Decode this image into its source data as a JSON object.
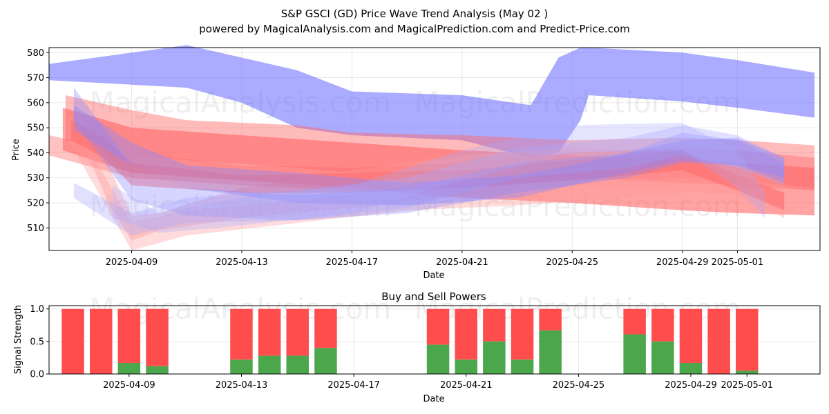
{
  "chart_data": [
    {
      "type": "area",
      "title": "S&P GSCI (GD) Price Wave Trend Analysis (May 02 )",
      "subtitle": "powered by MagicalAnalysis.com and MagicalPrediction.com and Predict-Price.com",
      "xlabel": "Date",
      "ylabel": "Price",
      "x_start": "2025-04-06",
      "x_end": "2025-05-04",
      "ylim": [
        501,
        582
      ],
      "yticks": [
        510,
        520,
        530,
        540,
        550,
        560,
        570,
        580
      ],
      "xticks": [
        "2025-04-09",
        "2025-04-13",
        "2025-04-17",
        "2025-04-21",
        "2025-04-25",
        "2025-04-29",
        "2025-05-01"
      ],
      "grid": true,
      "watermarks": [
        "MagicalAnalysis.com",
        "MagicalPrediction.com"
      ],
      "bands": [
        {
          "color": "#6666ff",
          "opacity": 0.55,
          "points": [
            [
              "2025-04-06",
              575.5,
              569
            ],
            [
              "2025-04-11",
              583,
              566
            ],
            [
              "2025-04-13",
              578,
              560
            ],
            [
              "2025-04-15",
              573,
              550
            ],
            [
              "2025-04-17",
              564.5,
              547
            ],
            [
              "2025-04-21",
              563,
              545
            ],
            [
              "2025-04-23.5",
              559,
              538
            ],
            [
              "2025-04-24.5",
              578,
              540
            ],
            [
              "2025-04-25.3",
              582,
              553
            ],
            [
              "2025-04-25.6",
              582,
              563
            ],
            [
              "2025-04-29",
              580,
              560.5
            ],
            [
              "2025-05-01",
              577,
              558
            ],
            [
              "2025-05-03.8",
              572,
              554
            ]
          ]
        },
        {
          "color": "#ff6666",
          "opacity": 0.6,
          "points": [
            [
              "2025-04-06.5",
              558,
              541
            ],
            [
              "2025-04-09",
              550,
              532
            ],
            [
              "2025-04-13",
              547,
              529
            ],
            [
              "2025-04-17",
              544,
              526
            ],
            [
              "2025-04-21",
              541,
              522
            ],
            [
              "2025-04-25",
              539,
              520
            ],
            [
              "2025-04-29",
              537,
              517
            ],
            [
              "2025-05-01",
              536,
              516
            ],
            [
              "2025-05-03.8",
              534,
              515
            ]
          ]
        },
        {
          "color": "#ff6666",
          "opacity": 0.45,
          "points": [
            [
              "2025-04-06.6",
              563,
              545
            ],
            [
              "2025-04-09",
              557,
              540
            ],
            [
              "2025-04-11",
              553,
              537
            ],
            [
              "2025-04-15",
              551,
              534
            ],
            [
              "2025-04-17",
              548,
              532
            ],
            [
              "2025-04-21",
              547,
              531
            ],
            [
              "2025-04-25",
              545,
              530
            ],
            [
              "2025-04-29",
              546,
              528
            ],
            [
              "2025-05-01",
              545,
              527
            ],
            [
              "2025-05-03.8",
              543,
              525
            ]
          ]
        },
        {
          "color": "#ff6666",
          "opacity": 0.4,
          "points": [
            [
              "2025-04-06",
              547,
              539
            ],
            [
              "2025-04-09",
              540,
              530
            ],
            [
              "2025-04-13",
              535,
              527
            ],
            [
              "2025-04-17",
              534,
              525
            ],
            [
              "2025-04-21",
              536,
              526
            ],
            [
              "2025-04-25",
              540,
              529
            ],
            [
              "2025-04-29",
              542,
              530
            ],
            [
              "2025-05-01",
              541,
              529
            ],
            [
              "2025-05-03.8",
              538,
              526
            ]
          ]
        },
        {
          "color": "#ff9999",
          "opacity": 0.4,
          "points": [
            [
              "2025-04-07",
              557,
              549
            ],
            [
              "2025-04-08.2",
              534,
              519
            ],
            [
              "2025-04-09",
              515,
              505
            ],
            [
              "2025-04-10",
              516,
              509
            ],
            [
              "2025-04-13",
              526,
              514
            ],
            [
              "2025-04-17",
              533,
              518
            ],
            [
              "2025-04-21",
              539,
              523
            ],
            [
              "2025-04-25",
              542,
              527
            ],
            [
              "2025-04-29",
              540,
              525
            ],
            [
              "2025-05-01",
              531,
              523
            ],
            [
              "2025-05-02.7",
              524,
              514
            ]
          ]
        },
        {
          "color": "#ff9999",
          "opacity": 0.35,
          "points": [
            [
              "2025-04-06.7",
              556,
              545
            ],
            [
              "2025-04-09",
              512,
              501
            ],
            [
              "2025-04-11",
              517,
              507
            ],
            [
              "2025-04-15",
              521,
              512
            ],
            [
              "2025-04-19",
              526,
              517
            ],
            [
              "2025-04-23",
              531,
              519
            ],
            [
              "2025-04-27",
              536,
              522
            ],
            [
              "2025-04-29",
              539,
              524
            ],
            [
              "2025-05-01",
              536,
              524
            ],
            [
              "2025-05-02.7",
              528,
              518
            ]
          ]
        },
        {
          "color": "#ff6666",
          "opacity": 0.5,
          "points": [
            [
              "2025-04-06.8",
              553,
              545
            ],
            [
              "2025-04-08",
              546,
              538
            ],
            [
              "2025-04-09",
              536,
              527
            ],
            [
              "2025-04-13",
              531,
              524
            ],
            [
              "2025-04-17",
              532,
              524
            ],
            [
              "2025-04-21",
              533,
              526
            ],
            [
              "2025-04-25",
              537,
              529
            ],
            [
              "2025-04-29",
              541,
              533
            ],
            [
              "2025-05-01",
              531,
              525
            ],
            [
              "2025-05-02.7",
              524,
              517
            ]
          ]
        },
        {
          "color": "#8888ff",
          "opacity": 0.35,
          "points": [
            [
              "2025-04-06.9",
              566,
              553
            ],
            [
              "2025-04-09",
              535,
              521
            ],
            [
              "2025-04-11",
              526,
              515
            ],
            [
              "2025-04-15",
              523,
              513
            ],
            [
              "2025-04-19",
              526,
              516
            ],
            [
              "2025-04-23",
              536,
              524
            ],
            [
              "2025-04-27",
              540,
              530
            ],
            [
              "2025-04-29",
              548,
              536
            ],
            [
              "2025-05-01",
              545,
              535
            ],
            [
              "2025-05-02.7",
              536,
              528
            ]
          ]
        },
        {
          "color": "#aaaaff",
          "opacity": 0.35,
          "points": [
            [
              "2025-04-06.9",
              528,
              522
            ],
            [
              "2025-04-09",
              516,
              507
            ],
            [
              "2025-04-11",
              522,
              512
            ],
            [
              "2025-04-15",
              525,
              513
            ],
            [
              "2025-04-19",
              530,
              518
            ],
            [
              "2025-04-23",
              542,
              530
            ],
            [
              "2025-04-27",
              546,
              534
            ],
            [
              "2025-04-29",
              551,
              539
            ],
            [
              "2025-05-01",
              547,
              534
            ],
            [
              "2025-05-02.7",
              538,
              527
            ]
          ]
        },
        {
          "color": "#8888ff",
          "opacity": 0.4,
          "points": [
            [
              "2025-04-06.9",
              559,
              549
            ],
            [
              "2025-04-09",
              544,
              535
            ],
            [
              "2025-04-11",
              535,
              526
            ],
            [
              "2025-04-15",
              532,
              520
            ],
            [
              "2025-04-19",
              528,
              519
            ],
            [
              "2025-04-23",
              531,
              522
            ],
            [
              "2025-04-25",
              535,
              527
            ],
            [
              "2025-04-29",
              545,
              537
            ],
            [
              "2025-05-01",
              546,
              535
            ],
            [
              "2025-05-02.7",
              538,
              530
            ]
          ]
        },
        {
          "color": "#aaaaff",
          "opacity": 0.3,
          "points": [
            [
              "2025-04-08.3",
              527,
              514
            ],
            [
              "2025-04-10",
              516,
              508
            ],
            [
              "2025-04-13",
              522,
              511
            ],
            [
              "2025-04-17",
              527,
              516
            ],
            [
              "2025-04-21",
              541,
              529
            ],
            [
              "2025-04-25",
              551,
              540
            ],
            [
              "2025-04-29",
              552,
              541
            ],
            [
              "2025-05-01",
              541,
              526
            ],
            [
              "2025-05-02",
              524,
              514
            ]
          ]
        }
      ]
    },
    {
      "type": "bar",
      "title": "Buy and Sell Powers",
      "xlabel": "Date",
      "ylabel": "Signal Strength",
      "ylim": [
        0,
        1.05
      ],
      "yticks": [
        0.0,
        0.5,
        1.0
      ],
      "xticks": [
        "2025-04-09",
        "2025-04-13",
        "2025-04-17",
        "2025-04-21",
        "2025-04-25",
        "2025-04-29",
        "2025-05-01"
      ],
      "x_start": "2025-04-06.15",
      "x_end": "2025-05-03.6",
      "series": [
        {
          "name": "buy",
          "color": "#4ca64c"
        },
        {
          "name": "sell",
          "color": "#ff4d4d"
        }
      ],
      "bars": [
        {
          "date": "2025-04-07",
          "buy": 0.0
        },
        {
          "date": "2025-04-08",
          "buy": 0.0
        },
        {
          "date": "2025-04-09",
          "buy": 0.17
        },
        {
          "date": "2025-04-10",
          "buy": 0.12
        },
        {
          "date": "2025-04-13",
          "buy": 0.22
        },
        {
          "date": "2025-04-14",
          "buy": 0.28
        },
        {
          "date": "2025-04-15",
          "buy": 0.28
        },
        {
          "date": "2025-04-16",
          "buy": 0.4
        },
        {
          "date": "2025-04-20",
          "buy": 0.45
        },
        {
          "date": "2025-04-21",
          "buy": 0.22
        },
        {
          "date": "2025-04-22",
          "buy": 0.5
        },
        {
          "date": "2025-04-23",
          "buy": 0.22
        },
        {
          "date": "2025-04-24",
          "buy": 0.67
        },
        {
          "date": "2025-04-27",
          "buy": 0.61
        },
        {
          "date": "2025-04-28",
          "buy": 0.5
        },
        {
          "date": "2025-04-29",
          "buy": 0.17
        },
        {
          "date": "2025-04-30",
          "buy": 0.0
        },
        {
          "date": "2025-05-01",
          "buy": 0.05
        }
      ]
    }
  ]
}
